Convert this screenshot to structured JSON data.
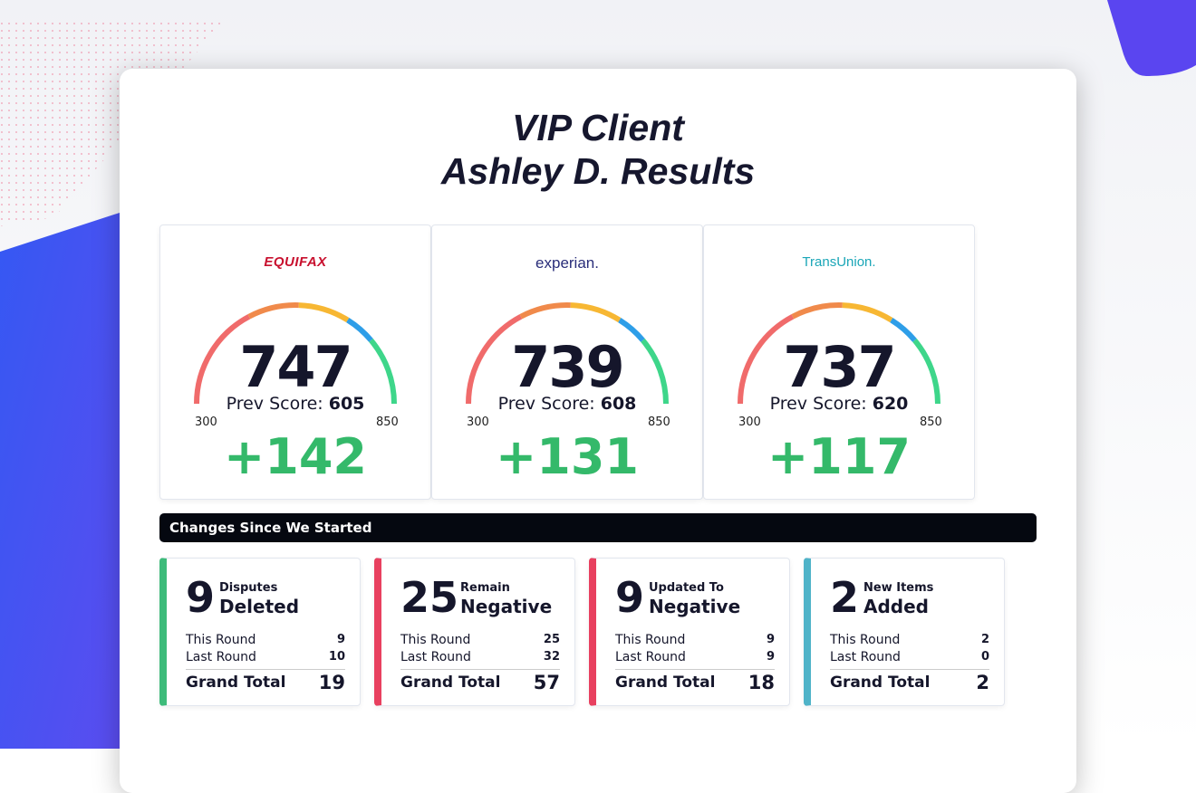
{
  "header": {
    "title_line1": "VIP Client",
    "title_line2": "Ashley D. Results"
  },
  "bureaus": [
    {
      "logo": "EQUIFAX",
      "score": 747,
      "prev_label": "Prev Score:",
      "prev_score": 605,
      "min": 300,
      "max": 850,
      "change": "+142"
    },
    {
      "logo": "experian.",
      "score": 739,
      "prev_label": "Prev Score:",
      "prev_score": 608,
      "min": 300,
      "max": 850,
      "change": "+131"
    },
    {
      "logo": "TransUnion.",
      "score": 737,
      "prev_label": "Prev Score:",
      "prev_score": 620,
      "min": 300,
      "max": 850,
      "change": "+117"
    }
  ],
  "changes": {
    "title": "Changes Since We Started",
    "cards": [
      {
        "count": 9,
        "label_top": "Disputes",
        "label_main": "Deleted",
        "color": "#3dbb7a",
        "rows": [
          {
            "label": "This Round",
            "value": 9
          },
          {
            "label": "Last Round",
            "value": 10
          }
        ],
        "total_label": "Grand Total",
        "total": 19
      },
      {
        "count": 25,
        "label_top": "Remain",
        "label_main": "Negative",
        "color": "#e8405f",
        "rows": [
          {
            "label": "This Round",
            "value": 25
          },
          {
            "label": "Last Round",
            "value": 32
          }
        ],
        "total_label": "Grand Total",
        "total": 57
      },
      {
        "count": 9,
        "label_top": "Updated To",
        "label_main": "Negative",
        "color": "#e8405f",
        "rows": [
          {
            "label": "This Round",
            "value": 9
          },
          {
            "label": "Last Round",
            "value": 9
          }
        ],
        "total_label": "Grand Total",
        "total": 18
      },
      {
        "count": 2,
        "label_top": "New Items",
        "label_main": "Added",
        "color": "#4fb3c8",
        "rows": [
          {
            "label": "This Round",
            "value": 2
          },
          {
            "label": "Last Round",
            "value": 0
          }
        ],
        "total_label": "Grand Total",
        "total": 2
      }
    ]
  }
}
